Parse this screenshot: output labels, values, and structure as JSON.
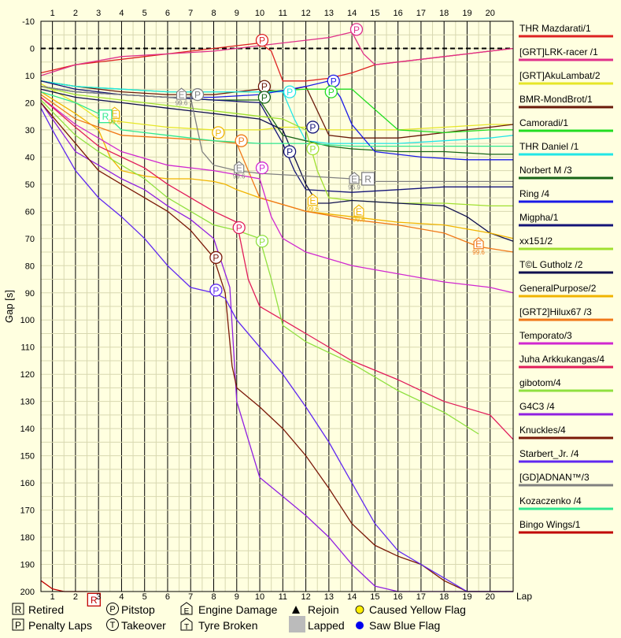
{
  "chart_data": {
    "type": "line",
    "title": "",
    "xlabel": "Lap",
    "ylabel": "Gap [s]",
    "xlim": [
      0.5,
      21
    ],
    "ylim": [
      -10,
      200
    ],
    "y_inverted": true,
    "x_ticks": [
      1,
      2,
      3,
      4,
      5,
      6,
      7,
      8,
      9,
      10,
      11,
      12,
      13,
      14,
      15,
      16,
      17,
      18,
      19,
      20
    ],
    "y_ticks": [
      -10,
      0,
      10,
      20,
      30,
      40,
      50,
      60,
      70,
      80,
      90,
      100,
      110,
      120,
      130,
      140,
      150,
      160,
      170,
      180,
      190,
      200
    ],
    "grid": true,
    "legend_position": "right",
    "legend_note": "legend entries are drawn as text on the chart",
    "series": [
      {
        "name": "THR Mazdarati/1",
        "color": "#dd2222",
        "x": [
          0.5,
          1,
          2,
          3,
          4,
          5,
          6,
          7,
          8,
          9,
          10,
          10.5,
          11,
          12,
          13,
          14,
          15,
          16,
          17,
          18,
          19,
          20,
          21
        ],
        "y": [
          9,
          8,
          6,
          5,
          4,
          3,
          2,
          1,
          0,
          -1,
          -2,
          1,
          12,
          12,
          11,
          9,
          6,
          5,
          4,
          3,
          2,
          1,
          0
        ]
      },
      {
        "name": "[GRT]LRK-racer /1",
        "color": "#e0308a",
        "x": [
          0.5,
          2,
          4,
          6,
          8,
          10,
          12,
          13,
          14,
          14.5,
          15,
          17,
          19,
          21
        ],
        "y": [
          10,
          6,
          3,
          2,
          1,
          -1,
          -3,
          -4,
          -6,
          2,
          6,
          4,
          2,
          0
        ]
      },
      {
        "name": "[GRT]AkuLambat/2",
        "color": "#e6e628",
        "x": [
          0.5,
          2,
          3,
          4,
          6,
          8,
          9,
          10,
          11,
          12,
          13,
          14,
          15,
          16,
          18,
          20,
          21
        ],
        "y": [
          13,
          20,
          26,
          27,
          29,
          30,
          30,
          30,
          29,
          29,
          30,
          30,
          30,
          30,
          29,
          28,
          28
        ]
      },
      {
        "name": "BMR-MondBrot/1",
        "color": "#6a1a0a",
        "x": [
          0.5,
          2,
          4,
          6,
          8,
          9,
          10,
          11,
          12,
          13,
          14,
          15,
          16,
          17,
          18,
          19,
          20,
          21
        ],
        "y": [
          12,
          14,
          16,
          17,
          17,
          16,
          15,
          16,
          14,
          32,
          33,
          33,
          33,
          32,
          31,
          30,
          29,
          28
        ]
      },
      {
        "name": "Camoradi/1",
        "color": "#22dd22",
        "x": [
          0.5,
          2,
          4,
          6,
          8,
          10,
          12,
          13,
          14,
          16,
          18,
          20,
          21
        ],
        "y": [
          12,
          14,
          15,
          16,
          16,
          16,
          15,
          15,
          15,
          30,
          31,
          30,
          30
        ]
      },
      {
        "name": "THR Daniel /1",
        "color": "#22e6e6",
        "x": [
          0.5,
          2,
          4,
          6,
          8,
          10,
          11,
          11.5,
          12,
          13,
          14,
          15,
          16,
          18,
          20,
          21
        ],
        "y": [
          12,
          14,
          15,
          16,
          16,
          16,
          16,
          26,
          34,
          35,
          35,
          35,
          35,
          34,
          33,
          32
        ]
      },
      {
        "name": "Norbert M /3",
        "color": "#166416",
        "x": [
          0.5,
          2,
          4,
          6,
          8,
          10,
          11,
          12,
          13,
          14,
          16,
          18,
          20,
          21
        ],
        "y": [
          14,
          16,
          17,
          18,
          19,
          19,
          32,
          34,
          36,
          37,
          38,
          38,
          39,
          39
        ]
      },
      {
        "name": "Ring /4",
        "color": "#1a1ae6",
        "x": [
          0.5,
          2,
          4,
          6,
          8,
          10,
          12,
          13,
          13.5,
          14,
          15,
          17,
          19,
          21
        ],
        "y": [
          14,
          16,
          17,
          18,
          18,
          17,
          14,
          12,
          18,
          28,
          38,
          40,
          41,
          41
        ]
      },
      {
        "name": "Migpha/1",
        "color": "#141478",
        "x": [
          0.5,
          2,
          4,
          6,
          8,
          10,
          11,
          11.5,
          12,
          14,
          16,
          18,
          20,
          21
        ],
        "y": [
          12,
          15,
          17,
          18,
          19,
          20,
          35,
          45,
          52,
          53,
          52,
          51,
          51,
          51
        ]
      },
      {
        "name": "xx151/2",
        "color": "#a0e030",
        "x": [
          0.5,
          2,
          4,
          6,
          8,
          9,
          10,
          11,
          12,
          12.5,
          13,
          14,
          16,
          18,
          20,
          21
        ],
        "y": [
          14,
          17,
          19,
          21,
          23,
          24,
          25,
          26,
          30,
          45,
          55,
          56,
          57,
          57,
          58,
          58
        ]
      },
      {
        "name": "T©L Gutholz /2",
        "color": "#101050",
        "x": [
          0.5,
          2,
          4,
          6,
          8,
          10,
          11,
          11.5,
          12,
          12.5,
          13,
          14,
          16,
          18,
          19,
          20,
          21
        ],
        "y": [
          15,
          18,
          20,
          22,
          24,
          26,
          30,
          40,
          50,
          57,
          57,
          56,
          57,
          58,
          62,
          68,
          71
        ]
      },
      {
        "name": "GeneralPurpose/2",
        "color": "#f0b400",
        "x": [
          0.5,
          2,
          3,
          3.5,
          4,
          5,
          6,
          7,
          8,
          8.5,
          9,
          10,
          12,
          14,
          16,
          18,
          20,
          21
        ],
        "y": [
          16,
          24,
          30,
          40,
          45,
          47,
          48,
          48,
          49,
          50,
          52,
          55,
          60,
          62,
          64,
          65,
          68,
          70
        ]
      },
      {
        "name": "[GRT2]Hilux67 /3",
        "color": "#f07818",
        "x": [
          0.5,
          2,
          4,
          6,
          8,
          9,
          9.5,
          10,
          12,
          14,
          16,
          18,
          19.5,
          21
        ],
        "y": [
          17,
          26,
          32,
          33,
          34,
          35,
          45,
          55,
          60,
          63,
          65,
          68,
          73,
          75
        ]
      },
      {
        "name": "Temporato/3",
        "color": "#d028d0",
        "x": [
          0.5,
          2,
          4,
          6,
          8,
          10,
          10.5,
          11,
          12,
          14,
          16,
          18,
          20,
          21
        ],
        "y": [
          18,
          28,
          38,
          43,
          45,
          48,
          62,
          70,
          75,
          80,
          83,
          86,
          88,
          90
        ]
      },
      {
        "name": "Juha Arkkukangas/4",
        "color": "#e01c5a",
        "x": [
          0.5,
          2,
          3,
          4,
          5,
          6,
          7,
          8,
          9,
          9.5,
          10,
          11,
          12,
          14,
          16,
          18,
          20,
          21
        ],
        "y": [
          18,
          29,
          36,
          40,
          44,
          50,
          55,
          60,
          64,
          85,
          95,
          100,
          105,
          115,
          122,
          130,
          135,
          144
        ]
      },
      {
        "name": "gibotom/4",
        "color": "#90e040",
        "x": [
          0.5,
          2,
          3,
          4,
          5,
          6,
          7,
          8,
          9,
          10,
          10.5,
          11,
          12,
          14,
          16,
          18,
          19.5
        ],
        "y": [
          19,
          32,
          38,
          43,
          48,
          55,
          60,
          65,
          67,
          70,
          85,
          102,
          108,
          116,
          126,
          134,
          142
        ]
      },
      {
        "name": "G4C3 /4",
        "color": "#9020e0",
        "x": [
          0.5,
          2,
          3,
          4,
          5,
          6,
          7,
          8,
          8.7,
          9,
          10,
          11,
          12,
          13,
          14,
          15,
          16,
          17,
          18,
          19,
          20,
          21
        ],
        "y": [
          20,
          38,
          43,
          48,
          52,
          58,
          63,
          70,
          88,
          130,
          158,
          165,
          172,
          180,
          190,
          198,
          200,
          200,
          200,
          200,
          200,
          200
        ]
      },
      {
        "name": "Knuckles/4",
        "color": "#7a1808",
        "x": [
          0.5,
          2,
          3,
          4,
          5,
          6,
          7,
          8,
          8.5,
          8.8,
          9,
          10,
          11,
          12,
          13,
          14,
          15,
          16,
          17,
          18,
          19,
          20,
          21
        ],
        "y": [
          20,
          35,
          45,
          50,
          55,
          60,
          67,
          77,
          90,
          117,
          125,
          132,
          140,
          150,
          162,
          175,
          183,
          187,
          190,
          196,
          200,
          200,
          200
        ]
      },
      {
        "name": "Starbert_Jr. /4",
        "color": "#6028f0",
        "x": [
          0.5,
          1,
          2,
          3,
          4,
          5,
          6,
          7,
          8,
          8.5,
          9,
          10,
          11,
          12,
          13,
          14,
          15,
          16,
          17,
          18,
          19,
          20,
          21
        ],
        "y": [
          22,
          30,
          45,
          55,
          62,
          70,
          80,
          88,
          90,
          92,
          100,
          110,
          120,
          132,
          145,
          160,
          175,
          185,
          190,
          195,
          200,
          200,
          200
        ]
      },
      {
        "name": "[GD]ADNAN™/3",
        "color": "#808080",
        "x": [
          0.5,
          2,
          4,
          6,
          7,
          7.5,
          8,
          9,
          10,
          12,
          14,
          15,
          16,
          17,
          18,
          19,
          20,
          21
        ],
        "y": [
          14,
          16,
          17,
          18,
          18,
          38,
          43,
          45,
          46,
          47,
          48,
          49,
          49,
          49,
          49,
          49,
          49,
          49
        ]
      },
      {
        "name": "Kozaczenko /4",
        "color": "#30e890",
        "x": [
          0.5,
          2,
          3,
          3.5,
          4,
          5,
          6,
          7,
          8,
          10,
          12,
          14,
          16,
          18,
          20,
          21
        ],
        "y": [
          16,
          20,
          24,
          26,
          30,
          31,
          32,
          33,
          34,
          35,
          35,
          36,
          36,
          36,
          36,
          36
        ]
      },
      {
        "name": "Bingo Wings/1",
        "color": "#c00000",
        "x": [
          0.5,
          1,
          1.5,
          2,
          2.5
        ],
        "y": [
          196,
          199,
          200,
          200,
          200
        ]
      }
    ],
    "annotations": [
      {
        "mark": "P",
        "color": "#dd2222",
        "x": 10.1,
        "y": -3
      },
      {
        "mark": "P",
        "color": "#e0308a",
        "x": 14.2,
        "y": -7
      },
      {
        "mark": "P",
        "color": "#1a1ae6",
        "x": 13.2,
        "y": 12
      },
      {
        "mark": "P",
        "color": "#6a1a0a",
        "x": 10.2,
        "y": 14
      },
      {
        "mark": "P",
        "color": "#166416",
        "x": 10.2,
        "y": 18
      },
      {
        "mark": "P",
        "color": "#22e6e6",
        "x": 11.3,
        "y": 16
      },
      {
        "mark": "P",
        "color": "#808080",
        "x": 7.3,
        "y": 17
      },
      {
        "mark": "P",
        "color": "#22dd22",
        "x": 13.1,
        "y": 16
      },
      {
        "mark": "P",
        "color": "#141478",
        "x": 12.3,
        "y": 29
      },
      {
        "mark": "P",
        "color": "#141478",
        "x": 11.3,
        "y": 38
      },
      {
        "mark": "P",
        "color": "#f0b400",
        "x": 8.2,
        "y": 31
      },
      {
        "mark": "P",
        "color": "#f07818",
        "x": 9.2,
        "y": 34
      },
      {
        "mark": "P",
        "color": "#a0e030",
        "x": 12.3,
        "y": 37
      },
      {
        "mark": "P",
        "color": "#d028d0",
        "x": 10.1,
        "y": 44
      },
      {
        "mark": "P",
        "color": "#e01c5a",
        "x": 9.1,
        "y": 66
      },
      {
        "mark": "P",
        "color": "#90e040",
        "x": 10.1,
        "y": 71
      },
      {
        "mark": "P",
        "color": "#7a1808",
        "x": 8.1,
        "y": 77
      },
      {
        "mark": "P",
        "color": "#6028f0",
        "x": 8.1,
        "y": 89
      },
      {
        "mark": "E",
        "color": "#808080",
        "x": 6.6,
        "y": 17
      },
      {
        "mark": "E",
        "color": "#808080",
        "x": 9.1,
        "y": 44
      },
      {
        "mark": "E",
        "color": "#808080",
        "x": 14.1,
        "y": 48
      },
      {
        "mark": "E",
        "color": "#f0b400",
        "x": 3.7,
        "y": 24
      },
      {
        "mark": "E",
        "color": "#f0b400",
        "x": 12.3,
        "y": 56
      },
      {
        "mark": "E",
        "color": "#f0b400",
        "x": 14.3,
        "y": 60
      },
      {
        "mark": "E",
        "color": "#f07818",
        "x": 19.5,
        "y": 72
      },
      {
        "mark": "R",
        "color": "#808080",
        "x": 14.7,
        "y": 48
      },
      {
        "mark": "R",
        "color": "#30e890",
        "x": 3.3,
        "y": 25
      },
      {
        "mark": "R",
        "color": "#c00000",
        "x": 2.8,
        "y": 203
      }
    ],
    "engine_labels": [
      {
        "text": "99.6",
        "color": "#808080",
        "x": 6.6,
        "y": 20
      },
      {
        "text": "99.6",
        "color": "#808080",
        "x": 9.1,
        "y": 47
      },
      {
        "text": "96.9",
        "color": "#808080",
        "x": 14.1,
        "y": 51
      },
      {
        "text": "99.6",
        "color": "#f07818",
        "x": 19.5,
        "y": 75
      },
      {
        "text": "99.6",
        "color": "#f0b400",
        "x": 12.3,
        "y": 59
      },
      {
        "text": "99.6",
        "color": "#f0b400",
        "x": 14.3,
        "y": 63
      },
      {
        "text": "99.6",
        "color": "#f0b400",
        "x": 3.7,
        "y": 27
      }
    ]
  },
  "key": {
    "retired": "Retired",
    "penalty": "Penalty Laps",
    "pitstop": "Pitstop",
    "takeover": "Takeover",
    "engine": "Engine Damage",
    "tyre": "Tyre Broken",
    "rejoin": "Rejoin",
    "lapped": "Lapped",
    "yellow": "Caused Yellow Flag",
    "blue": "Saw Blue Flag",
    "glyph_retired": "R",
    "glyph_penalty": "P",
    "glyph_pitstop": "P",
    "glyph_takeover": "T",
    "glyph_engine": "E",
    "glyph_tyre": "T"
  }
}
